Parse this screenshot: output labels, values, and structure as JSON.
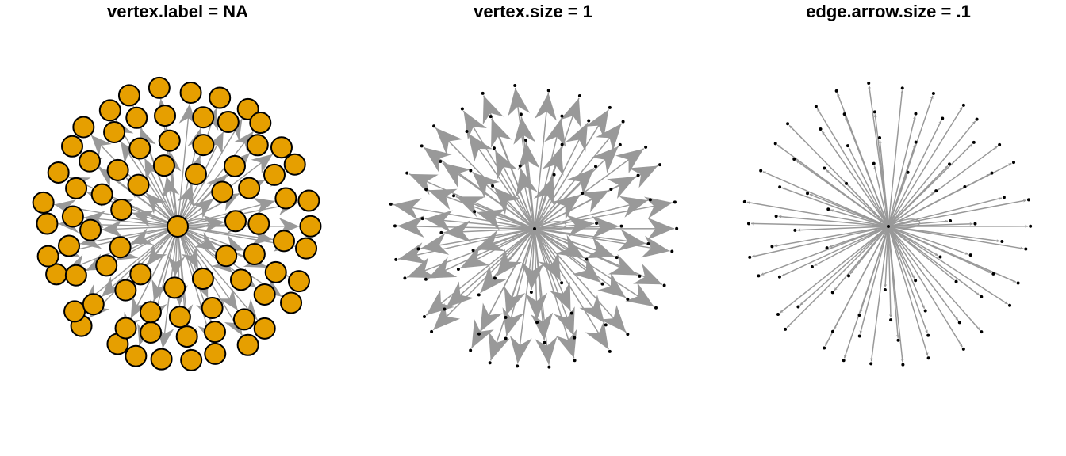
{
  "figure": {
    "panels": [
      {
        "title": "vertex.label = NA",
        "style": "large-orange"
      },
      {
        "title": "vertex.size = 1",
        "style": "small-dots-big-arrows"
      },
      {
        "title": "edge.arrow.size = .1",
        "style": "small-dots-small-arrows"
      }
    ],
    "colors": {
      "vertex_fill": "#E69F00",
      "vertex_stroke": "#000000",
      "edge": "#999999",
      "background": "#FFFFFF"
    }
  },
  "chart_data": {
    "type": "network",
    "layout": "star",
    "center_vertex": 1,
    "vertex_count": 80,
    "has_self_loop": true,
    "edge_direction": "hub-to-leaves"
  }
}
